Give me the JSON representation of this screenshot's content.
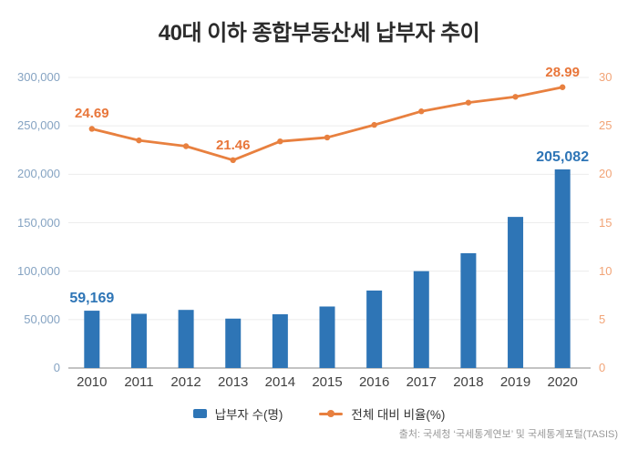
{
  "chart_data": {
    "type": "combo",
    "title": "40대 이하 종합부동산세 납부자 추이",
    "categories": [
      "2010",
      "2011",
      "2012",
      "2013",
      "2014",
      "2015",
      "2016",
      "2017",
      "2018",
      "2019",
      "2020"
    ],
    "series": [
      {
        "name": "납부자 수(명)",
        "type": "bar",
        "axis": "left",
        "values": [
          59169,
          56000,
          60000,
          51000,
          55500,
          63500,
          80000,
          100000,
          118500,
          156000,
          205082
        ]
      },
      {
        "name": "전체 대비 비율(%)",
        "type": "line",
        "axis": "right",
        "values": [
          24.69,
          23.5,
          22.9,
          21.46,
          23.4,
          23.8,
          25.1,
          26.5,
          27.4,
          28.0,
          28.99
        ]
      }
    ],
    "data_labels": {
      "bar": [
        {
          "index": 0,
          "text": "59,169"
        },
        {
          "index": 10,
          "text": "205,082"
        }
      ],
      "line": [
        {
          "index": 0,
          "text": "24.69"
        },
        {
          "index": 3,
          "text": "21.46"
        },
        {
          "index": 10,
          "text": "28.99"
        }
      ]
    },
    "left_axis": {
      "ticks": [
        "0",
        "50,000",
        "100,000",
        "150,000",
        "200,000",
        "250,000",
        "300,000"
      ],
      "range": [
        0,
        300000
      ]
    },
    "right_axis": {
      "ticks": [
        "0",
        "5",
        "10",
        "15",
        "20",
        "25",
        "30"
      ],
      "range": [
        0,
        30
      ]
    },
    "grid": true,
    "legend_position": "bottom",
    "source": "출처: 국세청 ‘국세통계연보’ 및 국세통계포털(TASIS)",
    "colors": {
      "bar": "#2E75B6",
      "bar_label": "#2E75B6",
      "line": "#E8803F",
      "line_label": "#E8763A",
      "left_ticks": "#85A3C2",
      "right_ticks": "#F2A477",
      "grid": "#ECECEC",
      "axis_line": "#C3C3C3",
      "years": "#404040",
      "title": "#2B2B2B",
      "legend_text": "#333333",
      "source": "#999999"
    }
  }
}
